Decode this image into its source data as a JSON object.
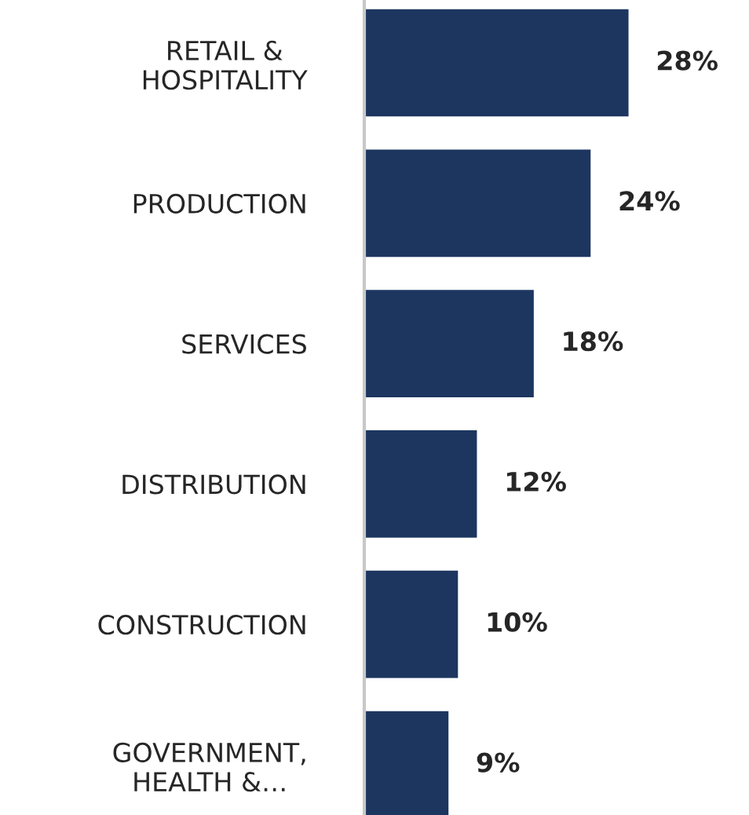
{
  "chart_data": {
    "type": "bar",
    "orientation": "horizontal",
    "categories": [
      "RETAIL &\nHOSPITALITY",
      "PRODUCTION",
      "SERVICES",
      "DISTRIBUTION",
      "CONSTRUCTION",
      "GOVERNMENT,\nHEALTH &…"
    ],
    "values": [
      28,
      24,
      18,
      12,
      10,
      9
    ],
    "value_labels": [
      "28%",
      "24%",
      "18%",
      "12%",
      "10%",
      "9%"
    ],
    "color": "#1c3660",
    "tick_labels": "y"
  }
}
